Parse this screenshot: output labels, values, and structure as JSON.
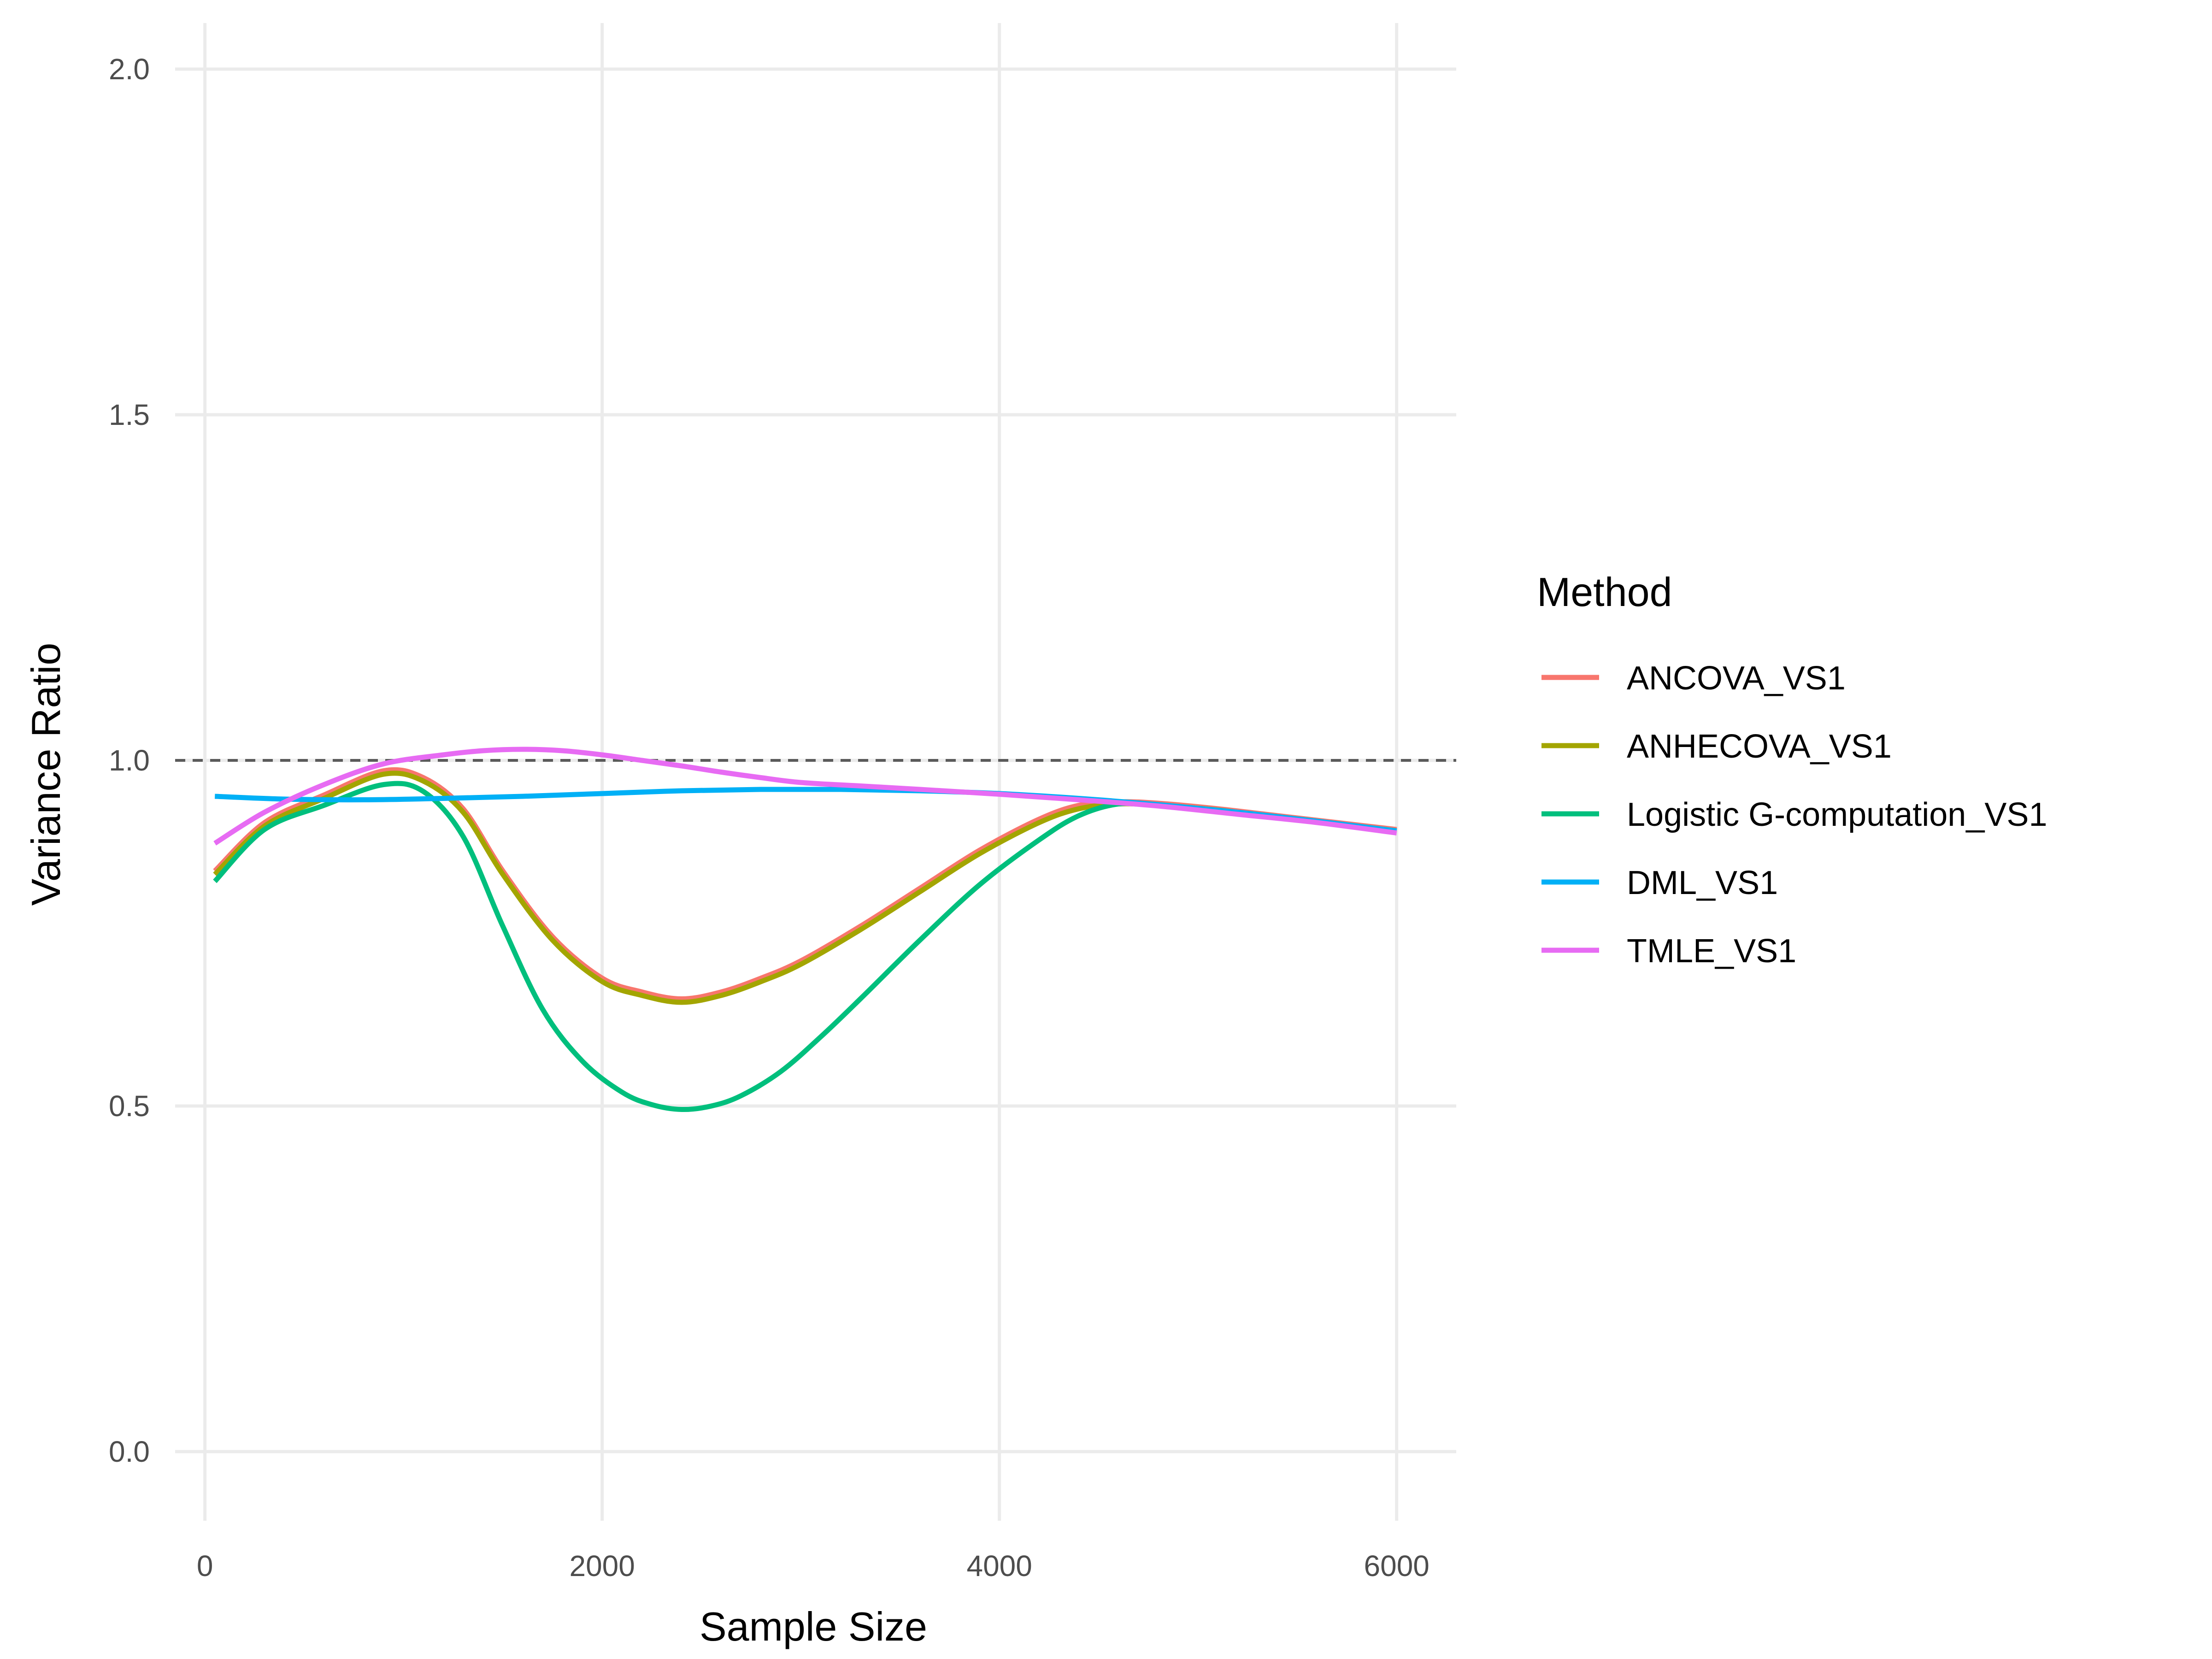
{
  "chart_data": {
    "type": "line",
    "xlabel": "Sample Size",
    "ylabel": "Variance Ratio",
    "xlim": [
      -150,
      6300
    ],
    "ylim": [
      -0.1,
      2.1
    ],
    "x_ticks": [
      0,
      2000,
      4000,
      6000
    ],
    "x_tick_labels": [
      "0",
      "2000",
      "4000",
      "6000"
    ],
    "y_ticks": [
      0.0,
      0.5,
      1.0,
      1.5,
      2.0
    ],
    "y_tick_labels": [
      "0.0",
      "0.5",
      "1.0",
      "1.5",
      "2.0"
    ],
    "grid": true,
    "reference_line": {
      "y": 1.0,
      "style": "dashed",
      "color": "#5a5a5a"
    },
    "legend": {
      "title": "Method",
      "position": "right"
    },
    "series": [
      {
        "name": "ANCOVA_VS1",
        "color": "#F8766D",
        "x": [
          50,
          300,
          600,
          900,
          1100,
          1300,
          1500,
          1750,
          2000,
          2200,
          2400,
          2600,
          2800,
          3000,
          3300,
          3600,
          3900,
          4200,
          4400,
          4600,
          4800,
          5100,
          5400,
          5700,
          6000
        ],
        "y": [
          0.84,
          0.91,
          0.95,
          0.985,
          0.975,
          0.93,
          0.84,
          0.745,
          0.685,
          0.665,
          0.655,
          0.665,
          0.685,
          0.71,
          0.76,
          0.815,
          0.87,
          0.915,
          0.935,
          0.94,
          0.938,
          0.93,
          0.92,
          0.91,
          0.9
        ]
      },
      {
        "name": "ANHECOVA_VS1",
        "color": "#A3A500",
        "x": [
          50,
          300,
          600,
          900,
          1100,
          1300,
          1500,
          1750,
          2000,
          2200,
          2400,
          2600,
          2800,
          3000,
          3300,
          3600,
          3900,
          4200,
          4400,
          4600,
          4800,
          5100,
          5400,
          5700,
          6000
        ],
        "y": [
          0.835,
          0.905,
          0.945,
          0.98,
          0.97,
          0.925,
          0.835,
          0.74,
          0.68,
          0.66,
          0.65,
          0.66,
          0.68,
          0.705,
          0.755,
          0.81,
          0.865,
          0.91,
          0.93,
          0.937,
          0.935,
          0.928,
          0.918,
          0.908,
          0.898
        ]
      },
      {
        "name": "Logistic G-computation_VS1",
        "color": "#00BF7D",
        "x": [
          50,
          300,
          600,
          900,
          1100,
          1300,
          1500,
          1700,
          1900,
          2100,
          2250,
          2400,
          2550,
          2700,
          2900,
          3100,
          3300,
          3600,
          3900,
          4200,
          4400,
          4600,
          4800,
          5100,
          5400,
          5700,
          6000
        ],
        "y": [
          0.825,
          0.9,
          0.935,
          0.965,
          0.955,
          0.89,
          0.76,
          0.64,
          0.565,
          0.52,
          0.502,
          0.495,
          0.5,
          0.515,
          0.55,
          0.6,
          0.655,
          0.74,
          0.82,
          0.885,
          0.92,
          0.937,
          0.935,
          0.928,
          0.918,
          0.908,
          0.898
        ]
      },
      {
        "name": "DML_VS1",
        "color": "#00B0F6",
        "x": [
          50,
          400,
          800,
          1200,
          1600,
          2000,
          2400,
          2800,
          3200,
          3600,
          4000,
          4400,
          4800,
          5200,
          5600,
          6000
        ],
        "y": [
          0.948,
          0.944,
          0.943,
          0.945,
          0.948,
          0.952,
          0.956,
          0.958,
          0.958,
          0.956,
          0.952,
          0.945,
          0.936,
          0.925,
          0.912,
          0.898
        ]
      },
      {
        "name": "TMLE_VS1",
        "color": "#E76BF3",
        "x": [
          50,
          300,
          600,
          900,
          1200,
          1400,
          1600,
          1800,
          2000,
          2200,
          2400,
          2600,
          2800,
          3000,
          3300,
          3600,
          4000,
          4400,
          4800,
          5200,
          5600,
          6000
        ],
        "y": [
          0.88,
          0.925,
          0.965,
          0.995,
          1.008,
          1.014,
          1.016,
          1.014,
          1.008,
          1.0,
          0.992,
          0.983,
          0.975,
          0.968,
          0.963,
          0.958,
          0.951,
          0.943,
          0.934,
          0.922,
          0.91,
          0.895
        ]
      }
    ]
  }
}
